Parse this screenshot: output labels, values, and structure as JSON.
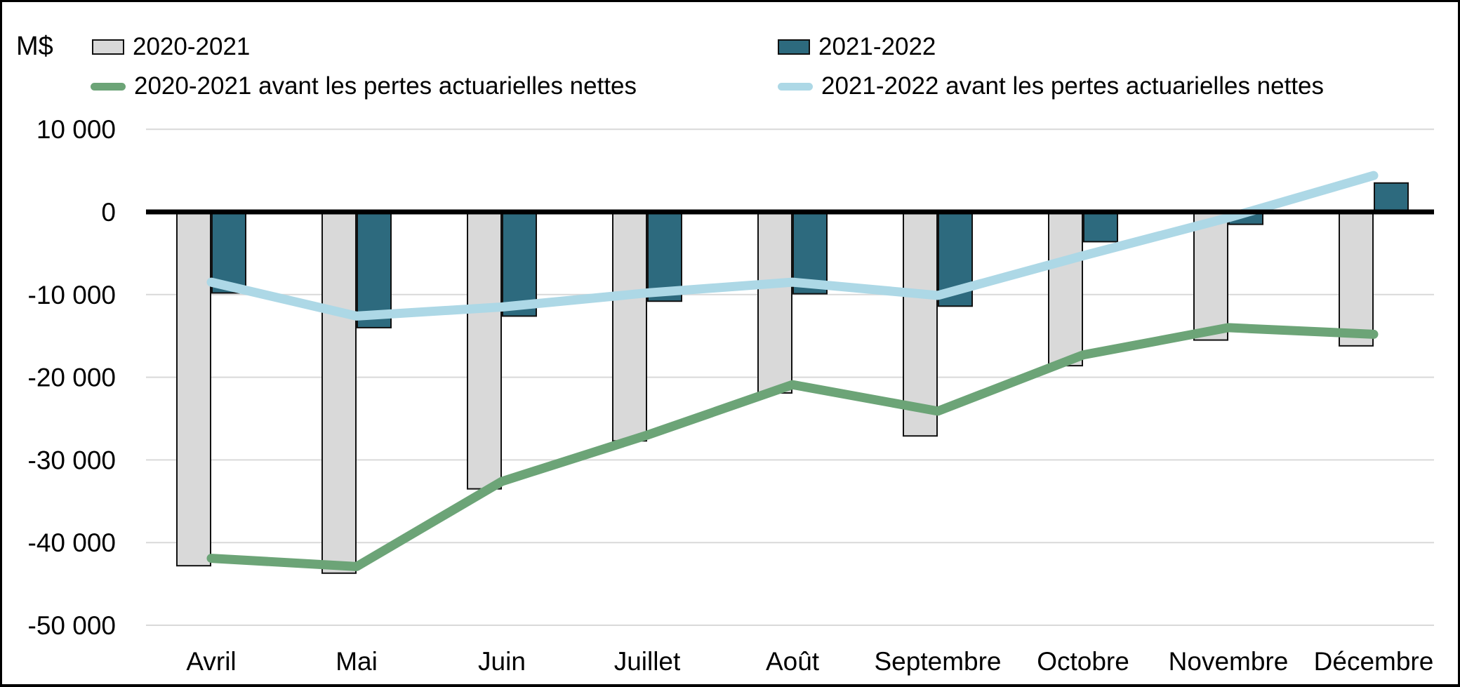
{
  "chart_data": {
    "type": "bar",
    "subtype": "grouped-bars-with-line-overlay",
    "unit_label": "M$",
    "categories": [
      "Avril",
      "Mai",
      "Juin",
      "Juillet",
      "Août",
      "Septembre",
      "Octobre",
      "Novembre",
      "Décembre"
    ],
    "series": [
      {
        "name": "2020-2021",
        "kind": "bar",
        "color": "#D9D9D9",
        "border": "#111111",
        "values": [
          -42800,
          -43700,
          -33500,
          -27700,
          -21900,
          -27100,
          -18600,
          -15500,
          -16200
        ]
      },
      {
        "name": "2021-2022",
        "kind": "bar",
        "color": "#2D6A7E",
        "border": "#111111",
        "values": [
          -9800,
          -14000,
          -12600,
          -10800,
          -9900,
          -11400,
          -3600,
          -1500,
          3500
        ]
      },
      {
        "name": "2020-2021 avant les pertes actuarielles nettes",
        "kind": "line",
        "color": "#6CA477",
        "values": [
          -41900,
          -42900,
          -32600,
          -27000,
          -20900,
          -24100,
          -17300,
          -14000,
          -14800
        ]
      },
      {
        "name": "2021-2022 avant les pertes actuarielles nettes",
        "kind": "line",
        "color": "#ADD8E6",
        "values": [
          -8500,
          -12600,
          -11500,
          -9800,
          -8500,
          -10100,
          -5300,
          -700,
          4400
        ]
      }
    ],
    "y_ticks": [
      10000,
      0,
      -10000,
      -20000,
      -30000,
      -40000,
      -50000
    ],
    "ylim": [
      -53000,
      14000
    ],
    "grid": "horizontal",
    "legend_position": "top",
    "gridline_color": "#D9D9D9",
    "zero_axis_color": "#000000"
  }
}
